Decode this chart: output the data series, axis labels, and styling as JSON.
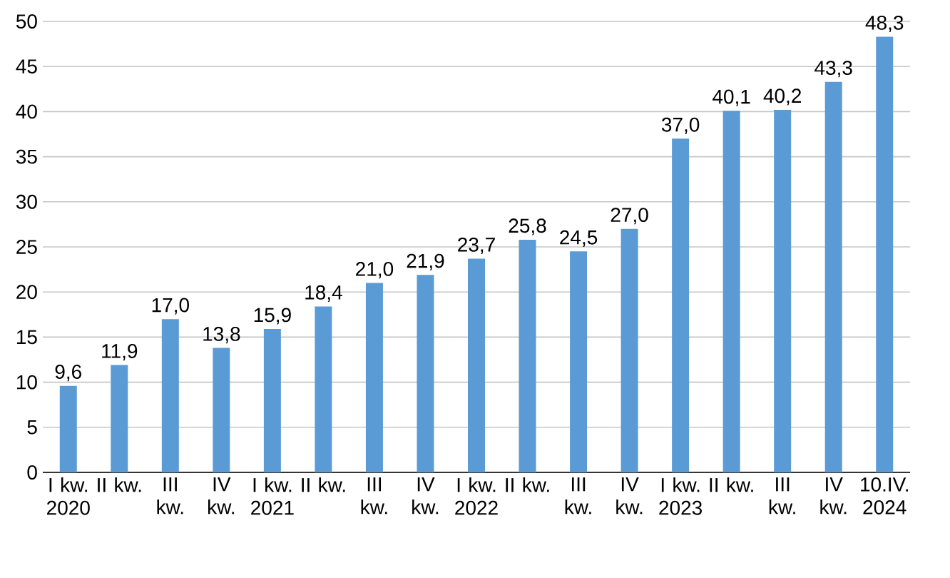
{
  "chart_data": {
    "type": "bar",
    "categories": [
      "I kw. 2020",
      "II kw.",
      "III kw.",
      "IV kw.",
      "I kw. 2021",
      "II kw.",
      "III kw.",
      "IV kw.",
      "I kw. 2022",
      "II kw.",
      "III kw.",
      "IV kw.",
      "I kw. 2023",
      "II kw.",
      "III kw.",
      "IV kw.",
      "10.IV. 2024"
    ],
    "values": [
      9.6,
      11.9,
      17.0,
      13.8,
      15.9,
      18.4,
      21.0,
      21.9,
      23.7,
      25.8,
      24.5,
      27.0,
      37.0,
      40.1,
      40.2,
      43.3,
      48.3
    ],
    "value_labels": [
      "9,6",
      "11,9",
      "17,0",
      "13,8",
      "15,9",
      "18,4",
      "21,0",
      "21,9",
      "23,7",
      "25,8",
      "24,5",
      "27,0",
      "37,0",
      "40,1",
      "40,2",
      "43,3",
      "48,3"
    ],
    "color": "#5b9bd5",
    "ylim": [
      0,
      50
    ],
    "yticks": [
      0,
      5,
      10,
      15,
      20,
      25,
      30,
      35,
      40,
      45,
      50
    ],
    "grid": "y"
  }
}
